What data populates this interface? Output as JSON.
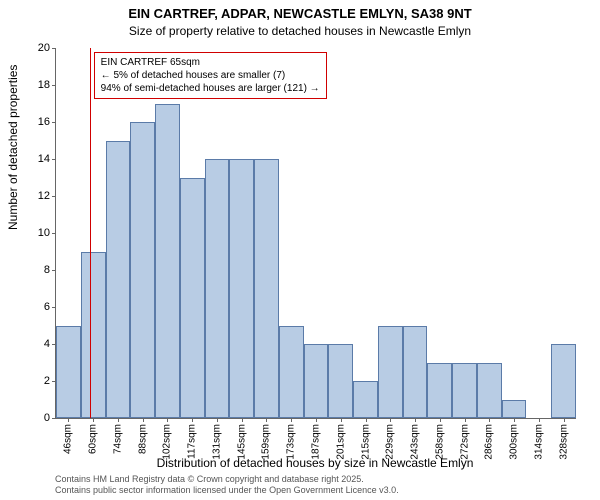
{
  "title_main": "EIN CARTREF, ADPAR, NEWCASTLE EMLYN, SA38 9NT",
  "title_sub": "Size of property relative to detached houses in Newcastle Emlyn",
  "ylabel": "Number of detached properties",
  "xlabel": "Distribution of detached houses by size in Newcastle Emlyn",
  "footer_line1": "Contains HM Land Registry data © Crown copyright and database right 2025.",
  "footer_line2": "Contains public sector information licensed under the Open Government Licence v3.0.",
  "chart": {
    "type": "histogram",
    "ylim": [
      0,
      20
    ],
    "ytick_step": 2,
    "bar_fill": "#b8cce4",
    "bar_border": "#5b7ba8",
    "background": "#ffffff",
    "marker_color": "#d00000",
    "categories": [
      "46sqm",
      "60sqm",
      "74sqm",
      "88sqm",
      "102sqm",
      "117sqm",
      "131sqm",
      "145sqm",
      "159sqm",
      "173sqm",
      "187sqm",
      "201sqm",
      "215sqm",
      "229sqm",
      "243sqm",
      "258sqm",
      "272sqm",
      "286sqm",
      "300sqm",
      "314sqm",
      "328sqm"
    ],
    "values": [
      5,
      9,
      15,
      16,
      17,
      13,
      14,
      14,
      14,
      5,
      4,
      4,
      2,
      5,
      5,
      3,
      3,
      3,
      1,
      0,
      4
    ],
    "marker_category_index": 1,
    "marker_fraction_in_bin": 0.36,
    "annotation": {
      "line1": "EIN CARTREF 65sqm",
      "line2": "← 5% of detached houses are smaller (7)",
      "line3": "94% of semi-detached houses are larger (121) →"
    },
    "title_fontsize": 13,
    "label_fontsize": 12,
    "tick_fontsize": 11,
    "xtick_fontsize": 10
  }
}
